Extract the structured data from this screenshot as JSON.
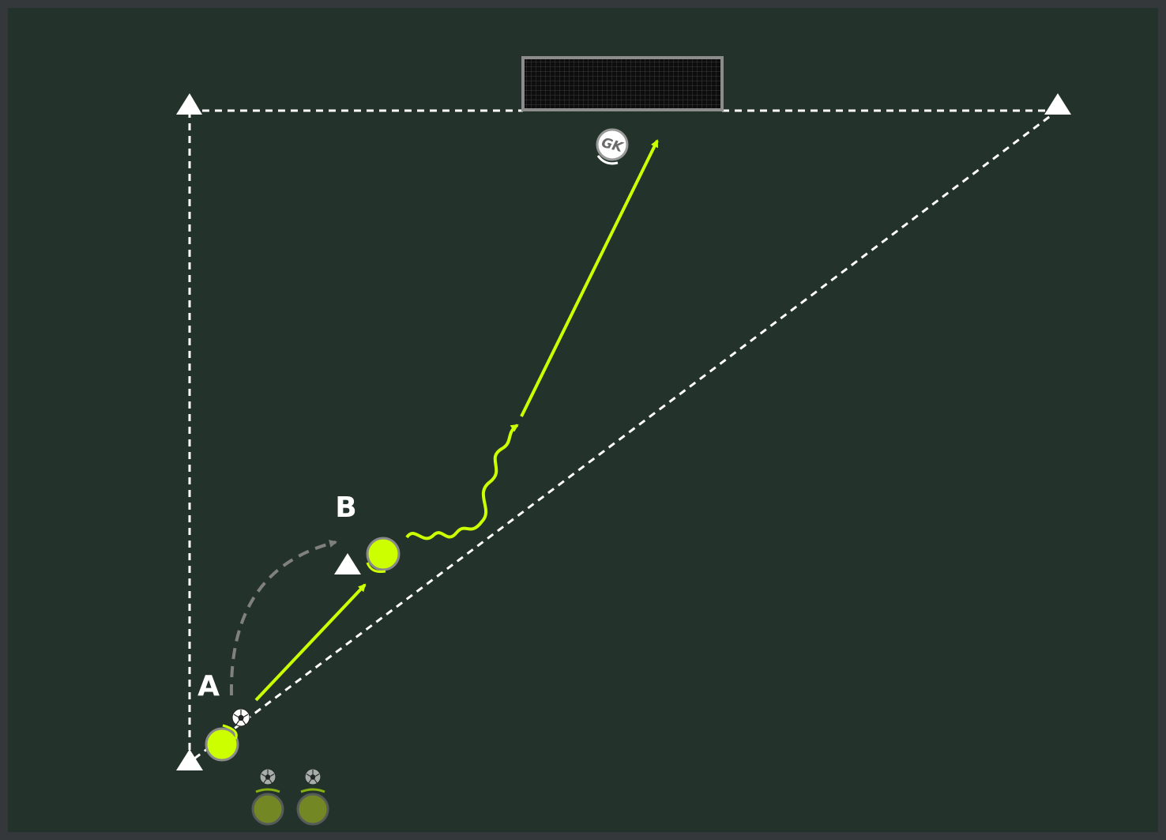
{
  "colors": {
    "frame": "#35383a",
    "pitch": "#23332b",
    "line": "#ffffff",
    "action": "#ccff00",
    "player": "#ccff00",
    "player_waiting": "#6e8a1a",
    "run_path": "#808080",
    "goal_frame": "#8c8c8c"
  },
  "labels": {
    "player_a": "A",
    "player_b": "B",
    "goalkeeper": "GK"
  },
  "legend": {
    "cone": "cone-icon",
    "ball": "ball-icon",
    "goal": "goal-net-icon"
  }
}
